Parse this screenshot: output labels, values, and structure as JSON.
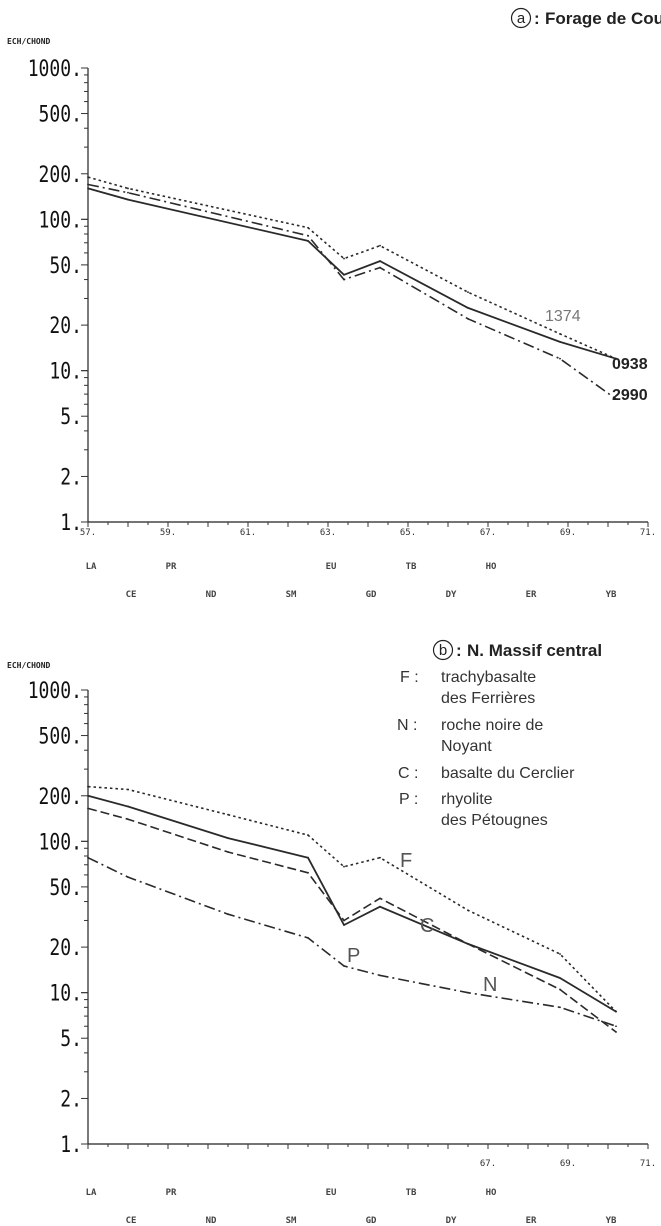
{
  "chart_data": [
    {
      "type": "line",
      "title": "Forage de Couy",
      "panel_letter": "a",
      "ylabel": "ECH/CHOND",
      "yscale": "log",
      "ylim": [
        1,
        1000
      ],
      "yticks": [
        "1000.",
        "500.",
        "200.",
        "100.",
        "50.",
        "20.",
        "10.",
        "5.",
        "2.",
        "1."
      ],
      "xlim": [
        57,
        71
      ],
      "xticks": [
        "57.",
        "59.",
        "61.",
        "63.",
        "65.",
        "67.",
        "69.",
        "71."
      ],
      "elements_row1": [
        "LA",
        "PR",
        "EU",
        "TB",
        "HO"
      ],
      "elements_row2": [
        "CE",
        "ND",
        "SM",
        "GD",
        "DY",
        "ER",
        "YB"
      ],
      "series": [
        {
          "name": "1374",
          "style": "dotted",
          "x": [
            57,
            58,
            62.5,
            63.4,
            64.3,
            66.5,
            68.8,
            70.2
          ],
          "y": [
            190,
            160,
            88,
            55,
            67,
            33,
            17.5,
            12
          ]
        },
        {
          "name": "0938",
          "style": "solid",
          "x": [
            57,
            58,
            62.5,
            63.4,
            64.3,
            66.5,
            68.8,
            70.2
          ],
          "y": [
            160,
            135,
            72,
            43,
            53,
            26,
            15.5,
            12
          ]
        },
        {
          "name": "2990",
          "style": "dashdot",
          "x": [
            57,
            58,
            62.5,
            63.4,
            64.3,
            66.5,
            68.8,
            70.2
          ],
          "y": [
            170,
            150,
            78,
            40,
            48,
            22,
            12,
            6.5
          ]
        }
      ]
    },
    {
      "type": "line",
      "title": "N. Massif central",
      "panel_letter": "b",
      "ylabel": "ECH/CHOND",
      "yscale": "log",
      "ylim": [
        1,
        1000
      ],
      "yticks": [
        "1000.",
        "500.",
        "200.",
        "100.",
        "50.",
        "20.",
        "10.",
        "5.",
        "2.",
        "1."
      ],
      "xlim": [
        57,
        71
      ],
      "xticks": [
        "67.",
        "69.",
        "71."
      ],
      "elements_row1": [
        "LA",
        "PR",
        "EU",
        "TB",
        "HO"
      ],
      "elements_row2": [
        "CE",
        "ND",
        "SM",
        "GD",
        "DY",
        "ER",
        "YB"
      ],
      "legend": [
        {
          "key": "F :",
          "line1": "trachybasalte",
          "line2": "des Ferrières"
        },
        {
          "key": "N :",
          "line1": "roche noire de",
          "line2": "Noyant"
        },
        {
          "key": "C :",
          "line1": "basalte du Cerclier",
          "line2": ""
        },
        {
          "key": "P :",
          "line1": "rhyolite",
          "line2": "des Pétougnes"
        }
      ],
      "series": [
        {
          "name": "F",
          "style": "dotted",
          "x": [
            57,
            58,
            60.5,
            62.5,
            63.4,
            64.3,
            66.5,
            68.8,
            70.2
          ],
          "y": [
            230,
            220,
            150,
            110,
            68,
            78,
            35,
            18,
            7.5
          ]
        },
        {
          "name": "N",
          "style": "solid",
          "x": [
            57,
            58,
            60.5,
            62.5,
            63.4,
            64.3,
            66.5,
            68.8,
            70.2
          ],
          "y": [
            200,
            170,
            105,
            78,
            28,
            37,
            21,
            12.5,
            7.5
          ]
        },
        {
          "name": "C",
          "style": "dashed",
          "x": [
            57,
            58,
            60.5,
            62.5,
            63.4,
            64.3,
            66.5,
            68.8,
            70.2
          ],
          "y": [
            165,
            140,
            85,
            62,
            30,
            42,
            21,
            10.5,
            5.5
          ]
        },
        {
          "name": "P",
          "style": "dashdot",
          "x": [
            57,
            58,
            60.5,
            62.5,
            63.4,
            64.3,
            66.5,
            68.8,
            70.2
          ],
          "y": [
            78,
            58,
            33,
            23,
            15,
            13,
            10,
            8,
            6
          ]
        }
      ]
    }
  ]
}
